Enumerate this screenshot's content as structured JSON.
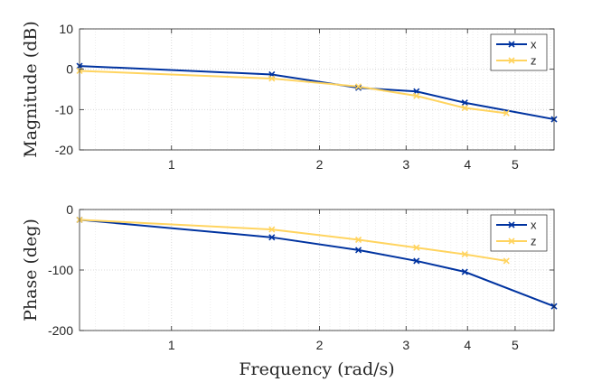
{
  "chart_data": [
    {
      "type": "line",
      "x_scale": "log",
      "xlim": [
        0.65,
        6.0
      ],
      "x_ticks": [
        1,
        2,
        3,
        4,
        5
      ],
      "x_tick_labels": [
        "1",
        "2",
        "3",
        "4",
        "5"
      ],
      "ylim": [
        -20,
        10
      ],
      "y_ticks": [
        10,
        0,
        -10,
        -20
      ],
      "y_tick_labels": [
        "10",
        "0",
        "-10",
        "-20"
      ],
      "ylabel": "Magnitude (dB)",
      "xlabel": "",
      "grid": true,
      "legend_position": "top-right",
      "series": [
        {
          "name": "x",
          "color": "#0033a0",
          "marker": "x",
          "x": [
            0.65,
            1.6,
            2.4,
            3.15,
            3.95,
            6.0
          ],
          "y": [
            0.8,
            -1.3,
            -4.6,
            -5.5,
            -8.3,
            -12.4
          ]
        },
        {
          "name": "z",
          "color": "#ffd45f",
          "marker": "x",
          "x": [
            0.65,
            1.6,
            2.4,
            3.15,
            3.95,
            4.8
          ],
          "y": [
            -0.4,
            -2.3,
            -4.3,
            -6.6,
            -9.6,
            -10.9
          ]
        }
      ]
    },
    {
      "type": "line",
      "x_scale": "log",
      "xlim": [
        0.65,
        6.0
      ],
      "x_ticks": [
        1,
        2,
        3,
        4,
        5
      ],
      "x_tick_labels": [
        "1",
        "2",
        "3",
        "4",
        "5"
      ],
      "ylim": [
        -200,
        0
      ],
      "y_ticks": [
        0,
        -100,
        -200
      ],
      "y_tick_labels": [
        "0",
        "-100",
        "-200"
      ],
      "ylabel": "Phase (deg)",
      "xlabel": "Frequency (rad/s)",
      "grid": true,
      "legend_position": "top-right",
      "series": [
        {
          "name": "x",
          "color": "#0033a0",
          "marker": "x",
          "x": [
            0.65,
            1.6,
            2.4,
            3.15,
            3.95,
            6.0
          ],
          "y": [
            -17,
            -46,
            -67,
            -85,
            -103,
            -160
          ]
        },
        {
          "name": "z",
          "color": "#ffd45f",
          "marker": "x",
          "x": [
            0.65,
            1.6,
            2.4,
            3.15,
            3.95,
            4.8
          ],
          "y": [
            -17,
            -33,
            -50,
            -63,
            -74,
            -85
          ]
        }
      ]
    }
  ]
}
